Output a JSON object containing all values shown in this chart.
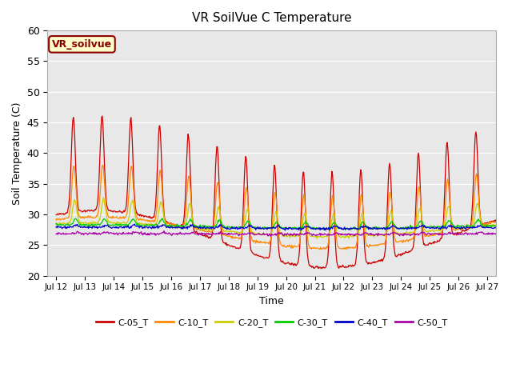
{
  "title": "VR SoilVue C Temperature",
  "xlabel": "Time",
  "ylabel": "Soil Temperature (C)",
  "ylim": [
    20,
    60
  ],
  "label_text": "VR_soilvue",
  "bg_color": "#e8e8e8",
  "fig_bg": "#ffffff",
  "series": [
    {
      "name": "C-05_T",
      "color": "#cc0000",
      "base": 26.0,
      "amp": 15.5,
      "phase_shift": 0.0
    },
    {
      "name": "C-10_T",
      "color": "#ff8800",
      "base": 27.0,
      "amp": 8.5,
      "phase_shift": 0.02
    },
    {
      "name": "C-20_T",
      "color": "#cccc00",
      "base": 27.5,
      "amp": 3.8,
      "phase_shift": 0.05
    },
    {
      "name": "C-30_T",
      "color": "#00cc00",
      "base": 28.0,
      "amp": 1.0,
      "phase_shift": 0.08
    },
    {
      "name": "C-40_T",
      "color": "#0000cc",
      "base": 27.8,
      "amp": 0.4,
      "phase_shift": 0.12
    },
    {
      "name": "C-50_T",
      "color": "#aa00aa",
      "base": 26.8,
      "amp": 0.25,
      "phase_shift": 0.15
    }
  ],
  "x_tick_labels": [
    "Jul 12",
    "Jul 13",
    "Jul 14",
    "Jul 15",
    "Jul 16",
    "Jul 17",
    "Jul 18",
    "Jul 19",
    "Jul 20",
    "Jul 21",
    "Jul 22",
    "Jul 23",
    "Jul 24",
    "Jul 25",
    "Jul 26",
    "Jul 27"
  ],
  "yticks": [
    20,
    25,
    30,
    35,
    40,
    45,
    50,
    55,
    60
  ],
  "grid_color": "#ffffff",
  "legend_line_colors": [
    "#cc0000",
    "#ff8800",
    "#cccc00",
    "#00cc00",
    "#0000cc",
    "#aa00aa"
  ],
  "legend_names": [
    "C-05_T",
    "C-10_T",
    "C-20_T",
    "C-30_T",
    "C-40_T",
    "C-50_T"
  ]
}
